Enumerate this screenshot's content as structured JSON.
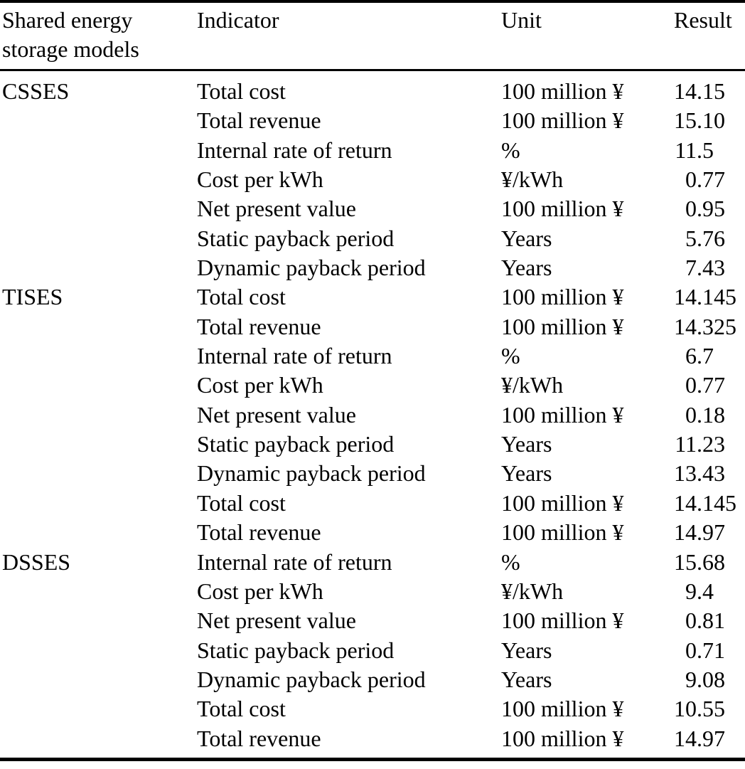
{
  "table": {
    "header": {
      "model": "Shared energy storage models",
      "indicator": "Indicator",
      "unit": "Unit",
      "result": "Result"
    },
    "rows": [
      {
        "model": "CSSES",
        "indicator": "Total cost",
        "unit": "100 million ¥",
        "result": "14.15"
      },
      {
        "model": "",
        "indicator": "Total revenue",
        "unit": "100 million ¥",
        "result": "15.10"
      },
      {
        "model": "",
        "indicator": "Internal rate of return",
        "unit": "%",
        "result": "11.5"
      },
      {
        "model": "",
        "indicator": "Cost per kWh",
        "unit": "¥/kWh",
        "result": "0.77"
      },
      {
        "model": "",
        "indicator": "Net present value",
        "unit": "100 million ¥",
        "result": "0.95"
      },
      {
        "model": "",
        "indicator": "Static payback period",
        "unit": "Years",
        "result": "5.76"
      },
      {
        "model": "",
        "indicator": "Dynamic payback period",
        "unit": "Years",
        "result": "7.43"
      },
      {
        "model": "TISES",
        "indicator": "Total cost",
        "unit": "100 million ¥",
        "result": "14.145"
      },
      {
        "model": "",
        "indicator": "Total revenue",
        "unit": "100 million ¥",
        "result": "14.325"
      },
      {
        "model": "",
        "indicator": "Internal rate of return",
        "unit": "%",
        "result": "6.7"
      },
      {
        "model": "",
        "indicator": "Cost per kWh",
        "unit": "¥/kWh",
        "result": "0.77"
      },
      {
        "model": "",
        "indicator": "Net present value",
        "unit": "100 million ¥",
        "result": "0.18"
      },
      {
        "model": "",
        "indicator": "Static payback period",
        "unit": "Years",
        "result": "11.23"
      },
      {
        "model": "",
        "indicator": "Dynamic payback period",
        "unit": "Years",
        "result": "13.43"
      },
      {
        "model": "",
        "indicator": "Total cost",
        "unit": "100 million ¥",
        "result": "14.145"
      },
      {
        "model": "",
        "indicator": "Total revenue",
        "unit": "100 million ¥",
        "result": "14.97"
      },
      {
        "model": "DSSES",
        "indicator": "Internal rate of return",
        "unit": "%",
        "result": "15.68"
      },
      {
        "model": "",
        "indicator": "Cost per kWh",
        "unit": "¥/kWh",
        "result": "9.4"
      },
      {
        "model": "",
        "indicator": "Net present value",
        "unit": "100 million ¥",
        "result": "0.81"
      },
      {
        "model": "",
        "indicator": "Static payback period",
        "unit": "Years",
        "result": "0.71"
      },
      {
        "model": "",
        "indicator": "Dynamic payback period",
        "unit": "Years",
        "result": "9.08"
      },
      {
        "model": "",
        "indicator": "Total cost",
        "unit": "100 million ¥",
        "result": "10.55"
      },
      {
        "model": "",
        "indicator": "Total revenue",
        "unit": "100 million ¥",
        "result": "14.97"
      }
    ]
  }
}
